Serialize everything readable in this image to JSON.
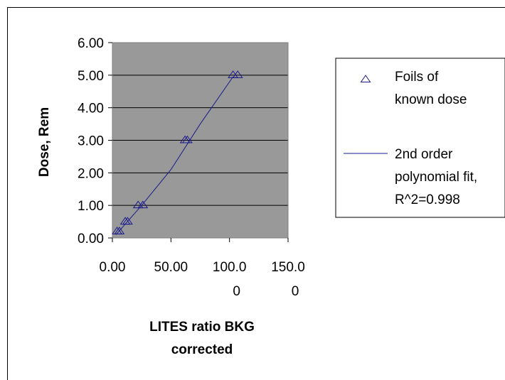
{
  "chart_data": {
    "type": "scatter",
    "xlabel": "LITES ratio BKG corrected",
    "ylabel": "Dose, Rem",
    "xlim": [
      0,
      150
    ],
    "ylim": [
      0,
      6
    ],
    "x_ticks": [
      0,
      50,
      100,
      150
    ],
    "y_ticks": [
      0,
      1,
      2,
      3,
      4,
      5,
      6
    ],
    "x_tick_labels": [
      [
        "0.00"
      ],
      [
        "50.00"
      ],
      [
        "100.0",
        "0"
      ],
      [
        "150.0",
        "0"
      ]
    ],
    "y_tick_labels": [
      "0.00",
      "1.00",
      "2.00",
      "3.00",
      "4.00",
      "5.00",
      "6.00"
    ],
    "plot_background": "#999999",
    "grid": "horizontal",
    "legend_position": "right",
    "series": [
      {
        "name": "Foils of known dose",
        "legend_lines": [
          "Foils of",
          "known dose"
        ],
        "kind": "marker",
        "marker": "triangle-open",
        "color": "#1a1a8c",
        "points": [
          {
            "x": 4,
            "y": 0.2
          },
          {
            "x": 6,
            "y": 0.2
          },
          {
            "x": 11,
            "y": 0.5
          },
          {
            "x": 13,
            "y": 0.5
          },
          {
            "x": 22,
            "y": 1.0
          },
          {
            "x": 26,
            "y": 1.0
          },
          {
            "x": 62,
            "y": 3.0
          },
          {
            "x": 64,
            "y": 3.0
          },
          {
            "x": 103,
            "y": 5.0
          },
          {
            "x": 107,
            "y": 5.0
          }
        ]
      },
      {
        "name": "2nd order polynomial fit, R^2=0.998",
        "legend_lines": [
          "2nd order",
          "polynomial fit,",
          "R^2=0.998"
        ],
        "kind": "line",
        "color": "#1a1a8c",
        "points": [
          {
            "x": 3,
            "y": 0.1
          },
          {
            "x": 25,
            "y": 1.0
          },
          {
            "x": 50,
            "y": 2.1
          },
          {
            "x": 75,
            "y": 3.5
          },
          {
            "x": 103,
            "y": 4.95
          }
        ]
      }
    ]
  }
}
